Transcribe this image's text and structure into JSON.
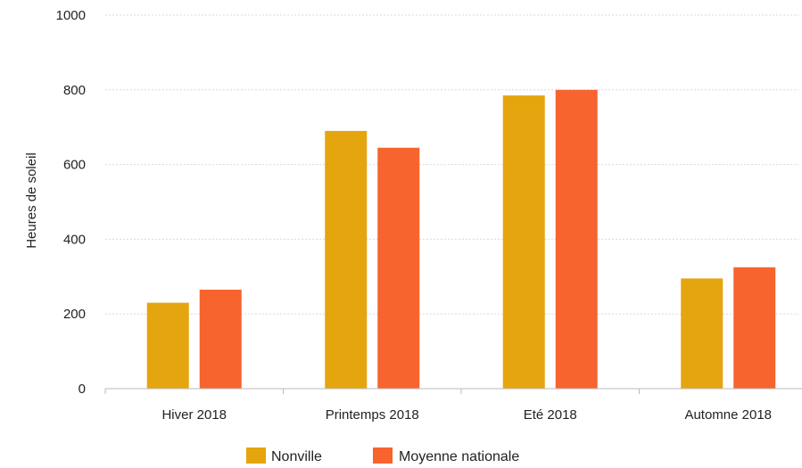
{
  "chart_data": {
    "type": "bar",
    "categories": [
      "Hiver 2018",
      "Printemps 2018",
      "Eté 2018",
      "Automne 2018"
    ],
    "series": [
      {
        "name": "Nonville",
        "values": [
          230,
          690,
          785,
          295
        ],
        "color": "#E5A50F"
      },
      {
        "name": "Moyenne nationale",
        "values": [
          265,
          645,
          800,
          325
        ],
        "color": "#F7642D"
      }
    ],
    "ylabel": "Heures de soleil",
    "xlabel": "",
    "ylim": [
      0,
      1000
    ],
    "yticks": [
      0,
      200,
      400,
      600,
      800,
      1000
    ],
    "grid": true,
    "legend_position": "bottom-center"
  }
}
